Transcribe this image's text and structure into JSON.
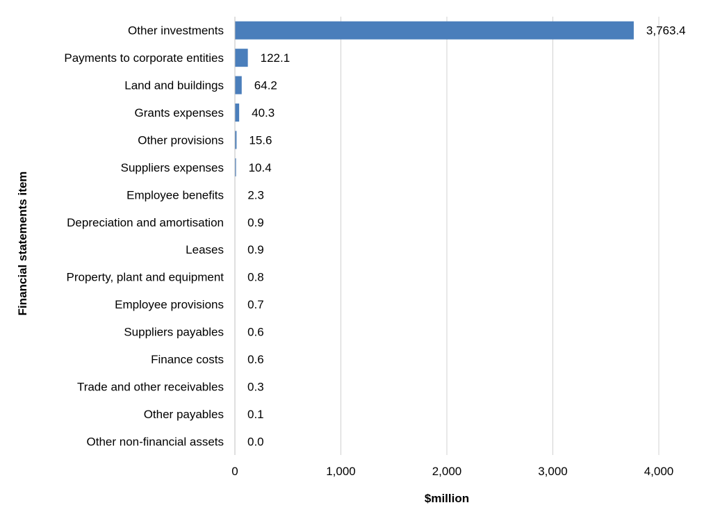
{
  "chart_data": {
    "type": "bar",
    "orientation": "horizontal",
    "title": "",
    "xlabel": "$million",
    "ylabel": "Financial statements item",
    "xlim": [
      0,
      4000
    ],
    "xticks": [
      0,
      1000,
      2000,
      3000,
      4000
    ],
    "xtick_labels": [
      "0",
      "1,000",
      "2,000",
      "3,000",
      "4,000"
    ],
    "grid": true,
    "bar_color": "#4a7ebb",
    "categories": [
      "Other investments",
      "Payments to corporate entities",
      "Land and buildings",
      "Grants expenses",
      "Other provisions",
      "Suppliers expenses",
      "Employee benefits",
      "Depreciation and amortisation",
      "Leases",
      "Property, plant and equipment",
      "Employee provisions",
      "Suppliers payables",
      "Finance costs",
      "Trade and other receivables",
      "Other payables",
      "Other non-financial assets"
    ],
    "values": [
      3763.4,
      122.1,
      64.2,
      40.3,
      15.6,
      10.4,
      2.3,
      0.9,
      0.9,
      0.8,
      0.7,
      0.6,
      0.6,
      0.3,
      0.1,
      0.0
    ],
    "value_labels": [
      "3,763.4",
      "122.1",
      "64.2",
      "40.3",
      "15.6",
      "10.4",
      "2.3",
      "0.9",
      "0.9",
      "0.8",
      "0.7",
      "0.6",
      "0.6",
      "0.3",
      "0.1",
      "0.0"
    ]
  }
}
